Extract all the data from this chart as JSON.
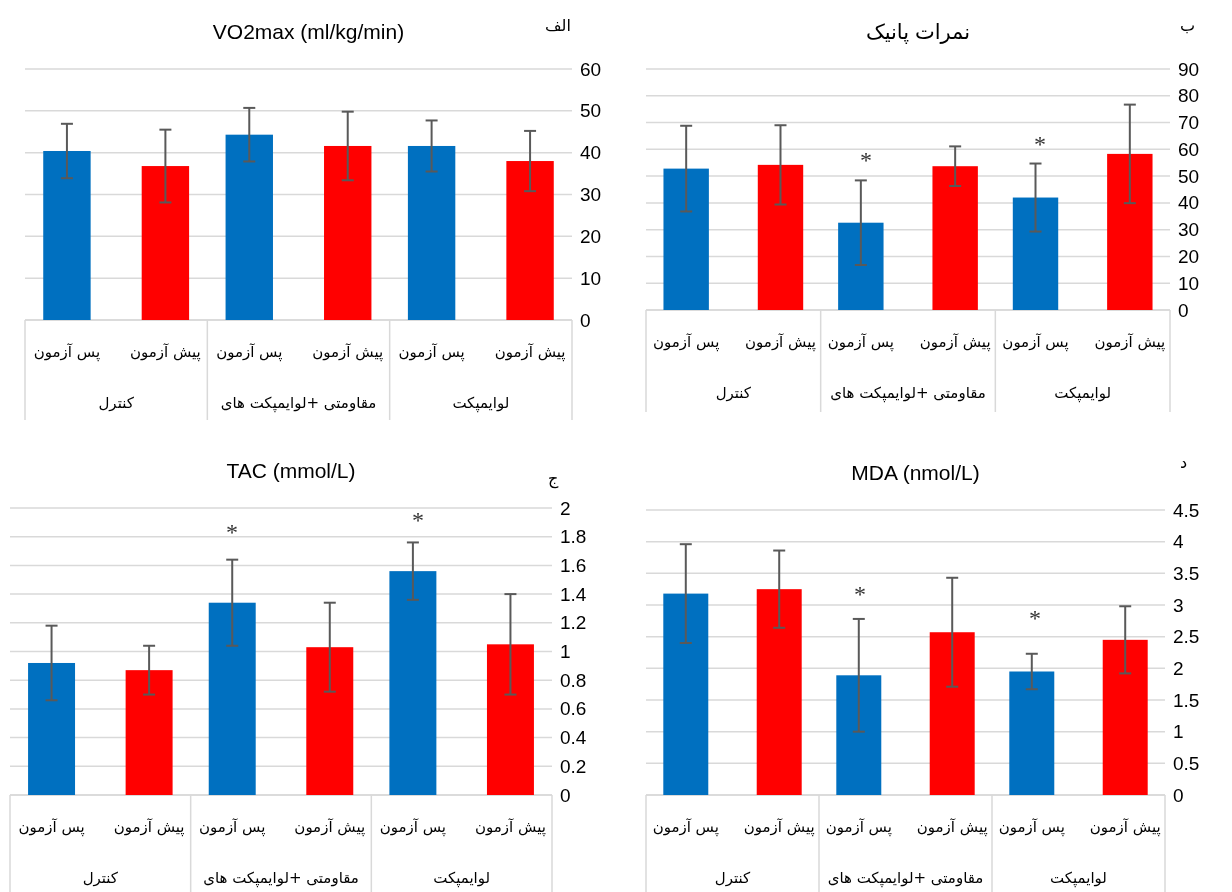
{
  "chart_data": [
    {
      "type": "bar",
      "title": "VO2max (ml/kg/min)",
      "categories": [
        "کنترل",
        "مقاومتی +لوایمپکت های",
        "لوایمپکت"
      ],
      "series": [
        {
          "name": "پس آزمون",
          "color": "#0070c0",
          "values": [
            40.4,
            44.3,
            41.6
          ],
          "errors": [
            6.5,
            6.4,
            6.1
          ]
        },
        {
          "name": "پیش آزمون",
          "color": "#ff0000",
          "values": [
            36.8,
            41.6,
            38.0
          ],
          "errors": [
            8.7,
            8.2,
            7.2
          ]
        }
      ],
      "ylim": [
        0,
        60
      ],
      "yticks": [
        0,
        10,
        20,
        30,
        40,
        50,
        60
      ],
      "grid": "y",
      "annotations": [
        "الف"
      ]
    },
    {
      "type": "bar",
      "title": "نمرات پانیک",
      "categories": [
        "کنترل",
        "مقاومتی +لوایمپکت های",
        "لوایمپکت"
      ],
      "series": [
        {
          "name": "پس آزمون",
          "color": "#0070c0",
          "values": [
            52.8,
            32.6,
            42.0
          ],
          "errors": [
            16,
            15.8,
            12.7
          ]
        },
        {
          "name": "پیش آزمون",
          "color": "#ff0000",
          "values": [
            54.2,
            53.7,
            58.3
          ],
          "errors": [
            14.8,
            7.4,
            18.4
          ]
        }
      ],
      "ylim": [
        0,
        90
      ],
      "yticks": [
        0,
        10,
        20,
        30,
        40,
        50,
        60,
        70,
        80,
        90
      ],
      "grid": "y",
      "annotations": [
        "ب",
        "*",
        "*"
      ]
    },
    {
      "type": "bar",
      "title": "TAC (mmol/L)",
      "categories": [
        "کنترل",
        "مقاومتی +لوایمپکت های",
        "لوایمپکت"
      ],
      "series": [
        {
          "name": "پس آزمون",
          "color": "#0070c0",
          "values": [
            0.92,
            1.34,
            1.56
          ],
          "errors": [
            0.26,
            0.3,
            0.2
          ]
        },
        {
          "name": "پیش آزمون",
          "color": "#ff0000",
          "values": [
            0.87,
            1.03,
            1.05
          ],
          "errors": [
            0.17,
            0.31,
            0.35
          ]
        }
      ],
      "ylim": [
        0,
        2
      ],
      "yticks": [
        0,
        0.2,
        0.4,
        0.6,
        0.8,
        1,
        1.2,
        1.4,
        1.6,
        1.8,
        2
      ],
      "grid": "y",
      "annotations": [
        "ج",
        "*",
        "*"
      ]
    },
    {
      "type": "bar",
      "title": "MDA (nmol/L)",
      "categories": [
        "کنترل",
        "مقاومتی +لوایمپکت های",
        "لوایمپکت"
      ],
      "series": [
        {
          "name": "پس آزمون",
          "color": "#0070c0",
          "values": [
            3.18,
            1.89,
            1.95
          ],
          "errors": [
            0.78,
            0.89,
            0.28
          ]
        },
        {
          "name": "پیش آزمون",
          "color": "#ff0000",
          "values": [
            3.25,
            2.57,
            2.45
          ],
          "errors": [
            0.61,
            0.86,
            0.53
          ]
        }
      ],
      "ylim": [
        0,
        4.5
      ],
      "yticks": [
        0,
        0.5,
        1,
        1.5,
        2,
        2.5,
        3,
        3.5,
        4,
        4.5
      ],
      "grid": "y",
      "annotations": [
        "د",
        "*",
        "*"
      ]
    }
  ]
}
